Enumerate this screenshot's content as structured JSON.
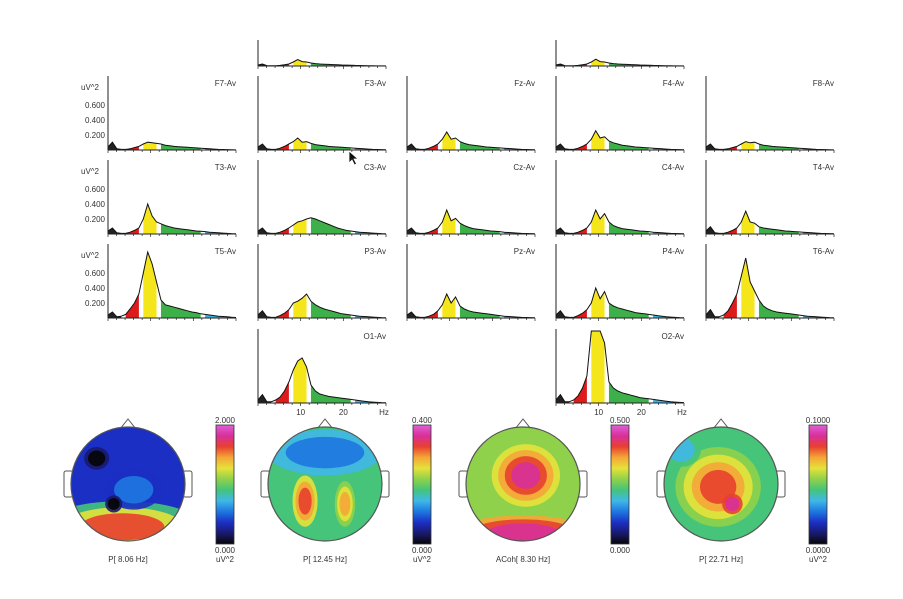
{
  "chart_data": [
    {
      "type": "area",
      "panels": [
        {
          "name": "F7-Av",
          "row": 1,
          "col": 0,
          "ylabel": "uV^2",
          "yticks": [
            "0.200",
            "0.400",
            "0.600"
          ],
          "y": [
            0.05,
            0.13,
            0.02,
            0.01,
            0.01,
            0.02,
            0.04,
            0.06,
            0.1,
            0.13,
            0.12,
            0.11,
            0.1,
            0.08,
            0.07,
            0.06,
            0.055,
            0.05,
            0.045,
            0.04,
            0.035,
            0.03,
            0.025,
            0.02,
            0.015,
            0.01,
            0.008,
            0.006,
            0.004,
            0.003
          ]
        },
        {
          "name": "F3-Av",
          "row": 1,
          "col": 1,
          "y": [
            0.05,
            0.1,
            0.02,
            0.01,
            0.01,
            0.03,
            0.06,
            0.1,
            0.14,
            0.2,
            0.13,
            0.14,
            0.11,
            0.09,
            0.08,
            0.07,
            0.06,
            0.055,
            0.05,
            0.045,
            0.04,
            0.035,
            0.03,
            0.025,
            0.02,
            0.015,
            0.01,
            0.008,
            0.006,
            0.004
          ]
        },
        {
          "name": "Fz-Av",
          "row": 1,
          "col": 2,
          "y": [
            0.05,
            0.1,
            0.02,
            0.01,
            0.01,
            0.03,
            0.06,
            0.1,
            0.18,
            0.3,
            0.18,
            0.2,
            0.14,
            0.11,
            0.09,
            0.08,
            0.07,
            0.06,
            0.05,
            0.045,
            0.04,
            0.035,
            0.03,
            0.025,
            0.02,
            0.015,
            0.01,
            0.008,
            0.006,
            0.004
          ]
        },
        {
          "name": "F4-Av",
          "row": 1,
          "col": 3,
          "y": [
            0.05,
            0.1,
            0.02,
            0.01,
            0.01,
            0.03,
            0.06,
            0.1,
            0.18,
            0.32,
            0.2,
            0.22,
            0.15,
            0.12,
            0.1,
            0.08,
            0.07,
            0.06,
            0.05,
            0.045,
            0.04,
            0.035,
            0.03,
            0.025,
            0.02,
            0.015,
            0.01,
            0.008,
            0.006,
            0.004
          ]
        },
        {
          "name": "F8-Av",
          "row": 1,
          "col": 4,
          "y": [
            0.05,
            0.1,
            0.02,
            0.01,
            0.01,
            0.02,
            0.04,
            0.06,
            0.1,
            0.14,
            0.12,
            0.13,
            0.1,
            0.08,
            0.07,
            0.06,
            0.055,
            0.05,
            0.045,
            0.04,
            0.035,
            0.03,
            0.025,
            0.02,
            0.015,
            0.01,
            0.008,
            0.006,
            0.004,
            0.003
          ]
        },
        {
          "name": "T3-Av",
          "row": 2,
          "col": 0,
          "ylabel": "uV^2",
          "yticks": [
            "0.200",
            "0.400",
            "0.600"
          ],
          "y": [
            0.05,
            0.1,
            0.02,
            0.01,
            0.01,
            0.03,
            0.06,
            0.1,
            0.25,
            0.5,
            0.3,
            0.2,
            0.17,
            0.14,
            0.12,
            0.1,
            0.09,
            0.08,
            0.07,
            0.06,
            0.05,
            0.045,
            0.04,
            0.03,
            0.025,
            0.02,
            0.015,
            0.01,
            0.006,
            0.004
          ]
        },
        {
          "name": "C3-Av",
          "row": 2,
          "col": 1,
          "y": [
            0.05,
            0.1,
            0.02,
            0.01,
            0.01,
            0.03,
            0.06,
            0.1,
            0.15,
            0.2,
            0.22,
            0.25,
            0.27,
            0.25,
            0.22,
            0.19,
            0.16,
            0.13,
            0.1,
            0.08,
            0.06,
            0.05,
            0.04,
            0.03,
            0.025,
            0.02,
            0.015,
            0.01,
            0.006,
            0.004
          ]
        },
        {
          "name": "Cz-Av",
          "row": 2,
          "col": 2,
          "y": [
            0.05,
            0.1,
            0.02,
            0.01,
            0.01,
            0.03,
            0.06,
            0.1,
            0.2,
            0.4,
            0.22,
            0.26,
            0.18,
            0.14,
            0.11,
            0.09,
            0.08,
            0.07,
            0.06,
            0.05,
            0.045,
            0.04,
            0.03,
            0.025,
            0.02,
            0.015,
            0.01,
            0.008,
            0.006,
            0.004
          ]
        },
        {
          "name": "C4-Av",
          "row": 2,
          "col": 3,
          "y": [
            0.05,
            0.1,
            0.02,
            0.01,
            0.01,
            0.03,
            0.06,
            0.1,
            0.2,
            0.4,
            0.25,
            0.34,
            0.2,
            0.14,
            0.11,
            0.09,
            0.08,
            0.07,
            0.06,
            0.05,
            0.045,
            0.04,
            0.03,
            0.025,
            0.02,
            0.015,
            0.01,
            0.008,
            0.006,
            0.004
          ]
        },
        {
          "name": "T4-Av",
          "row": 2,
          "col": 4,
          "y": [
            0.05,
            0.12,
            0.02,
            0.01,
            0.01,
            0.03,
            0.06,
            0.1,
            0.2,
            0.38,
            0.2,
            0.18,
            0.12,
            0.1,
            0.09,
            0.08,
            0.07,
            0.06,
            0.05,
            0.045,
            0.04,
            0.035,
            0.03,
            0.025,
            0.02,
            0.015,
            0.01,
            0.008,
            0.006,
            0.004
          ]
        },
        {
          "name": "T5-Av",
          "row": 3,
          "col": 0,
          "ylabel": "uV^2",
          "yticks": [
            "0.200",
            "0.400",
            "0.600"
          ],
          "y": [
            0.05,
            0.1,
            0.02,
            0.03,
            0.06,
            0.15,
            0.25,
            0.4,
            0.75,
            1.1,
            0.9,
            0.6,
            0.3,
            0.22,
            0.2,
            0.18,
            0.16,
            0.14,
            0.12,
            0.1,
            0.09,
            0.07,
            0.06,
            0.05,
            0.04,
            0.03,
            0.025,
            0.02,
            0.012,
            0.008
          ]
        },
        {
          "name": "P3-Av",
          "row": 3,
          "col": 1,
          "y": [
            0.05,
            0.12,
            0.02,
            0.01,
            0.01,
            0.04,
            0.08,
            0.14,
            0.25,
            0.28,
            0.33,
            0.4,
            0.28,
            0.22,
            0.18,
            0.15,
            0.13,
            0.11,
            0.09,
            0.07,
            0.06,
            0.05,
            0.04,
            0.03,
            0.025,
            0.02,
            0.015,
            0.01,
            0.006,
            0.004
          ]
        },
        {
          "name": "Pz-Av",
          "row": 3,
          "col": 2,
          "y": [
            0.05,
            0.1,
            0.02,
            0.01,
            0.01,
            0.03,
            0.06,
            0.12,
            0.22,
            0.4,
            0.25,
            0.35,
            0.2,
            0.15,
            0.12,
            0.1,
            0.09,
            0.08,
            0.07,
            0.06,
            0.05,
            0.04,
            0.03,
            0.025,
            0.02,
            0.015,
            0.01,
            0.008,
            0.006,
            0.004
          ]
        },
        {
          "name": "P4-Av",
          "row": 3,
          "col": 3,
          "y": [
            0.05,
            0.12,
            0.02,
            0.01,
            0.01,
            0.04,
            0.08,
            0.14,
            0.25,
            0.5,
            0.32,
            0.44,
            0.25,
            0.2,
            0.17,
            0.15,
            0.13,
            0.11,
            0.09,
            0.08,
            0.07,
            0.06,
            0.05,
            0.04,
            0.03,
            0.02,
            0.015,
            0.01,
            0.006,
            0.004
          ]
        },
        {
          "name": "T6-Av",
          "row": 3,
          "col": 4,
          "y": [
            0.05,
            0.14,
            0.02,
            0.02,
            0.05,
            0.12,
            0.25,
            0.4,
            0.7,
            1.0,
            0.6,
            0.45,
            0.3,
            0.2,
            0.15,
            0.12,
            0.1,
            0.09,
            0.08,
            0.07,
            0.06,
            0.05,
            0.04,
            0.03,
            0.025,
            0.02,
            0.015,
            0.01,
            0.006,
            0.004
          ]
        },
        {
          "name": "O1-Av",
          "row": 4,
          "col": 1,
          "y": [
            0.05,
            0.14,
            0.02,
            0.02,
            0.05,
            0.1,
            0.2,
            0.35,
            0.55,
            0.7,
            0.75,
            0.6,
            0.3,
            0.2,
            0.15,
            0.13,
            0.11,
            0.1,
            0.09,
            0.08,
            0.07,
            0.06,
            0.05,
            0.04,
            0.03,
            0.02,
            0.015,
            0.01,
            0.006,
            0.004
          ]
        },
        {
          "name": "O2-Av",
          "row": 4,
          "col": 3,
          "y": [
            0.05,
            0.14,
            0.02,
            0.02,
            0.05,
            0.12,
            0.25,
            0.45,
            1.2,
            1.2,
            1.2,
            1.0,
            0.35,
            0.25,
            0.2,
            0.17,
            0.15,
            0.13,
            0.11,
            0.09,
            0.08,
            0.07,
            0.06,
            0.05,
            0.04,
            0.03,
            0.02,
            0.015,
            0.01,
            0.006
          ]
        },
        {
          "name": "",
          "row": 0,
          "col": 1,
          "y": [
            0.05,
            0.1,
            0.02,
            0.01,
            0.01,
            0.03,
            0.06,
            0.1,
            0.2,
            0.32,
            0.22,
            0.2,
            0.15,
            0.12,
            0.1,
            0.09,
            0.08,
            0.07,
            0.06,
            0.05,
            0.045,
            0.04,
            0.03,
            0.025,
            0.02,
            0.015,
            0.01,
            0.008,
            0.006,
            0.004
          ]
        },
        {
          "name": "",
          "row": 0,
          "col": 3,
          "y": [
            0.05,
            0.1,
            0.02,
            0.01,
            0.01,
            0.03,
            0.06,
            0.1,
            0.2,
            0.34,
            0.22,
            0.2,
            0.15,
            0.12,
            0.1,
            0.09,
            0.08,
            0.07,
            0.06,
            0.05,
            0.045,
            0.04,
            0.03,
            0.025,
            0.02,
            0.015,
            0.01,
            0.008,
            0.006,
            0.004
          ]
        }
      ],
      "x_unit": "Hz",
      "xlim": [
        0,
        30
      ],
      "xticks": [
        "10",
        "20",
        "Hz"
      ],
      "bands": [
        {
          "from": 0,
          "to": 4,
          "color": "#222222"
        },
        {
          "from": 4,
          "to": 8,
          "color": "#dd1b1b"
        },
        {
          "from": 8,
          "to": 12,
          "color": "#f5e61c"
        },
        {
          "from": 12,
          "to": 22,
          "color": "#3db04a"
        },
        {
          "from": 22,
          "to": 30,
          "color": "#38b6e6"
        }
      ]
    },
    {
      "type": "heatmap",
      "maps": [
        {
          "caption": "P[  8.06 Hz]",
          "scale_max": "2.000",
          "scale_min": "0.000",
          "unit": "uV^2"
        },
        {
          "caption": "P[ 12.45 Hz]",
          "scale_max": "0.400",
          "scale_min": "0.000",
          "unit": "uV^2"
        },
        {
          "caption": "ACoh[  8.30 Hz]",
          "scale_max": "0.500",
          "scale_min": "0.000",
          "unit": ""
        },
        {
          "caption": "P[ 22.71 Hz]",
          "scale_max": "0.1000",
          "scale_min": "0.0000",
          "unit": "uV^2"
        }
      ],
      "colorscale": [
        "#050505",
        "#1a1a6e",
        "#1b2fc4",
        "#1e78e0",
        "#3fb8e8",
        "#45c47a",
        "#8fd14a",
        "#e5e23a",
        "#f4a637",
        "#e8402f",
        "#d8309a",
        "#e060d8"
      ]
    }
  ]
}
